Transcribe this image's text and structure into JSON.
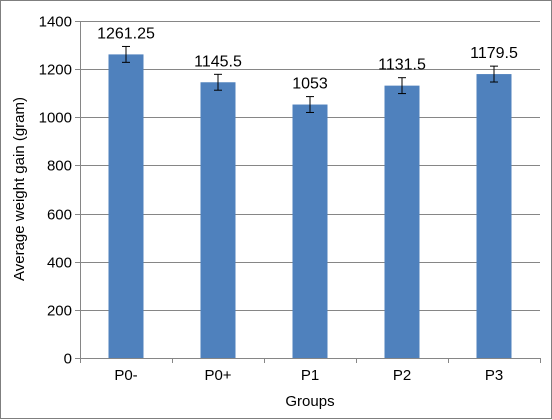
{
  "chart_data": {
    "type": "bar",
    "title": "",
    "xlabel": "Groups",
    "ylabel": "Average weight gain (gram)",
    "categories": [
      "P0-",
      "P0+",
      "P1",
      "P2",
      "P3"
    ],
    "values": [
      1261.25,
      1145.5,
      1053,
      1131.5,
      1179.5
    ],
    "data_labels": [
      "1261.25",
      "1145.5",
      "1053",
      "1131.5",
      "1179.5"
    ],
    "error": [
      33,
      33,
      33,
      33,
      33
    ],
    "ylim": [
      0,
      1400
    ],
    "yticks": [
      0,
      200,
      400,
      600,
      800,
      1000,
      1200,
      1400
    ],
    "grid": true,
    "legend": "none",
    "bar_color": "#4f81bd"
  }
}
